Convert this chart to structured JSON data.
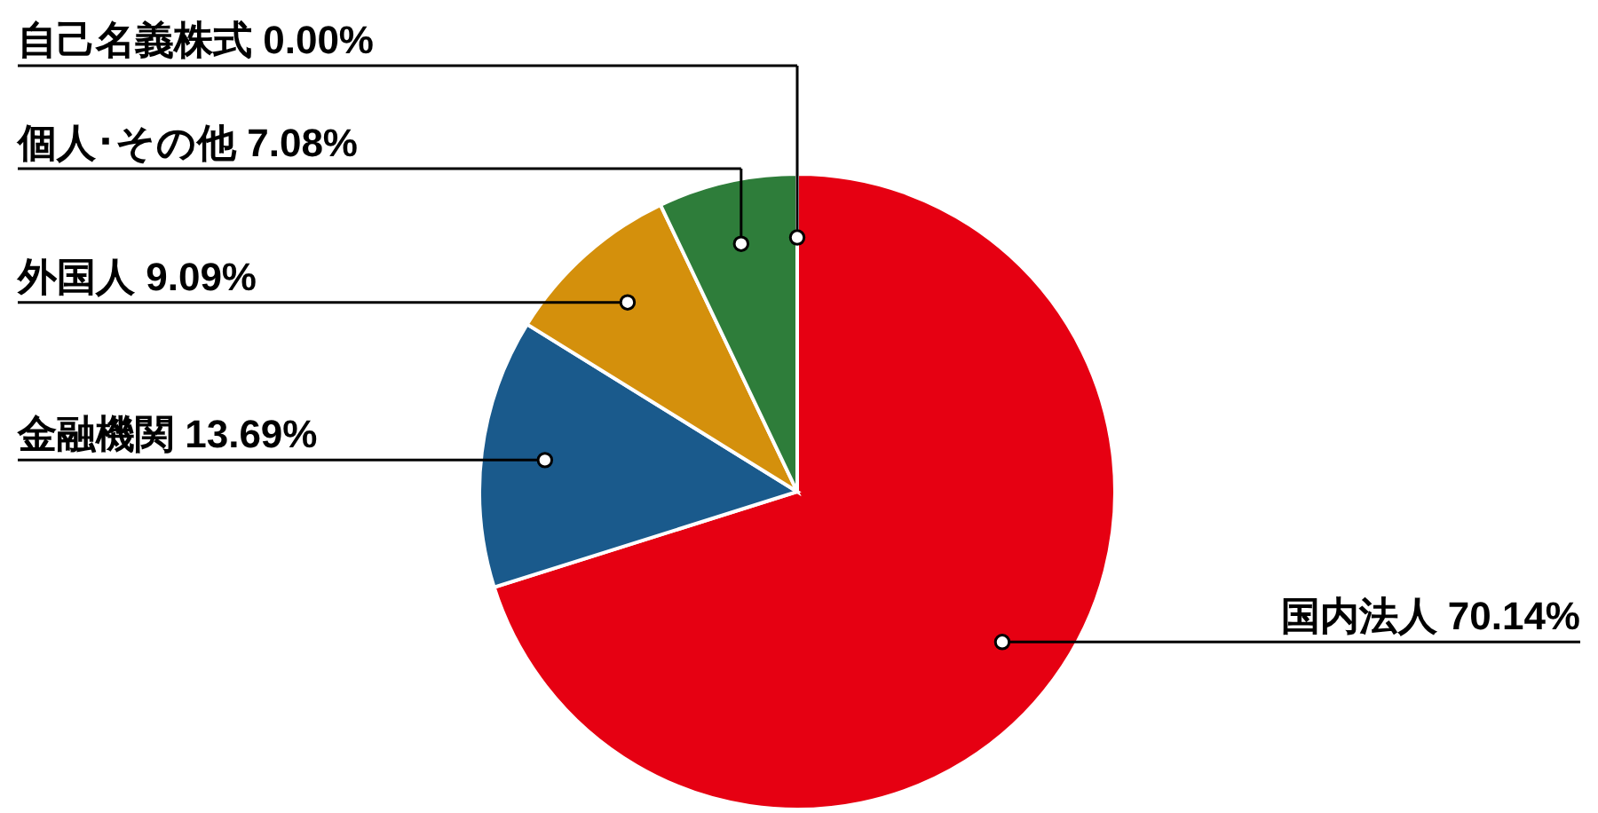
{
  "chart_data": {
    "type": "pie",
    "categories": [
      "国内法人",
      "金融機関",
      "外国人",
      "個人･その他",
      "自己名義株式"
    ],
    "values": [
      70.14,
      13.69,
      9.09,
      7.08,
      0.0
    ],
    "value_labels": [
      "70.14%",
      "13.69%",
      "9.09%",
      "7.08%",
      "0.00%"
    ],
    "colors": [
      "#e60012",
      "#1a5a8c",
      "#d4900c",
      "#2e7d3a",
      "#8c8c8c"
    ]
  }
}
